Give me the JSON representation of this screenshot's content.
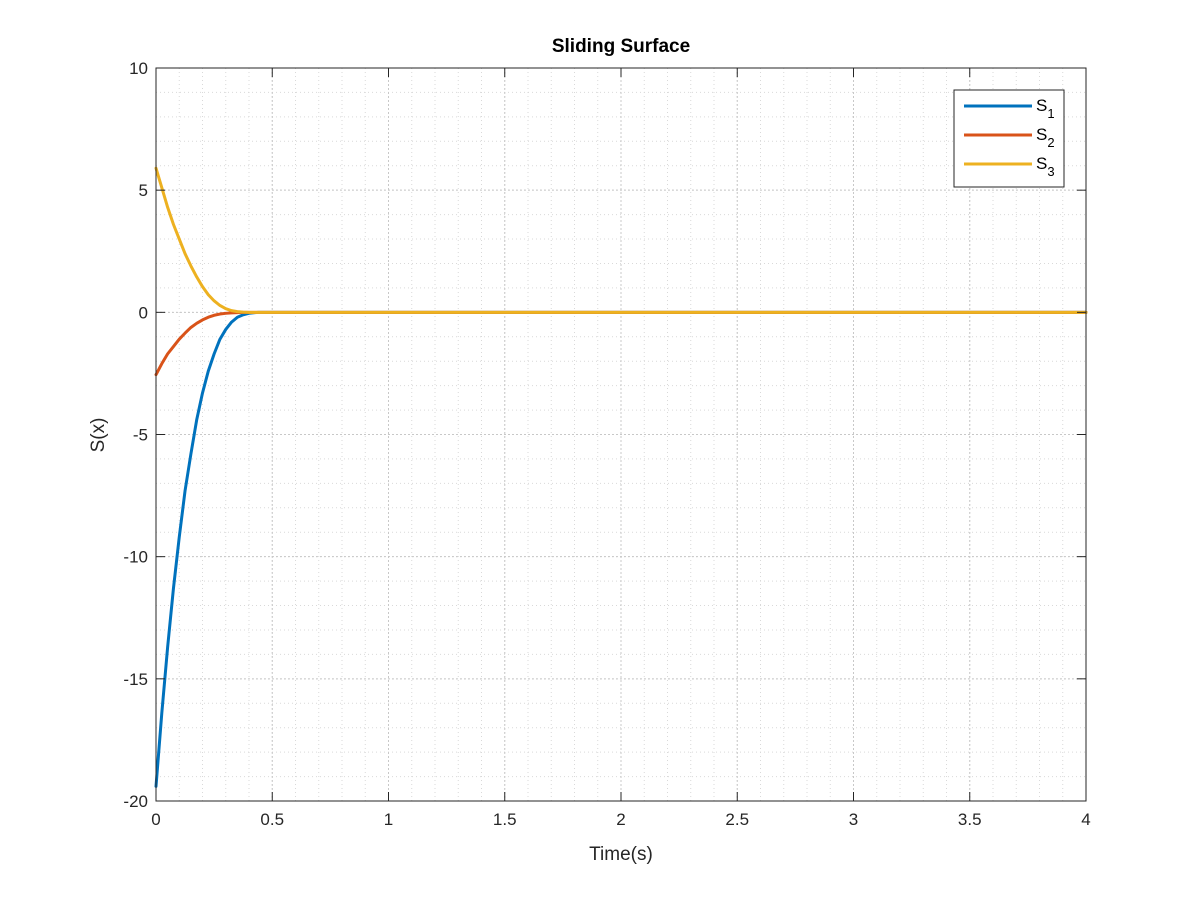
{
  "chart_data": {
    "type": "line",
    "title": "Sliding Surface",
    "xlabel": "Time(s)",
    "ylabel": "S(x)",
    "xlim": [
      0,
      4
    ],
    "ylim": [
      -20,
      10
    ],
    "x_ticks": [
      0,
      0.5,
      1,
      1.5,
      2,
      2.5,
      3,
      3.5,
      4
    ],
    "x_tick_labels": [
      "0",
      "0.5",
      "1",
      "1.5",
      "2",
      "2.5",
      "3",
      "3.5",
      "4"
    ],
    "y_ticks": [
      -20,
      -15,
      -10,
      -5,
      0,
      5,
      10
    ],
    "y_tick_labels": [
      "-20",
      "-15",
      "-10",
      "-5",
      "0",
      "5",
      "10"
    ],
    "grid": "major and minor",
    "legend_position": "top-right",
    "series": [
      {
        "name": "S",
        "subscript": "1",
        "color": "#0072BD",
        "x": [
          0,
          0.025,
          0.05,
          0.075,
          0.1,
          0.125,
          0.15,
          0.175,
          0.2,
          0.225,
          0.25,
          0.275,
          0.3,
          0.325,
          0.35,
          0.375,
          0.4,
          0.425,
          0.44,
          1,
          2,
          3,
          4
        ],
        "y": [
          -19.4,
          -16.4,
          -13.7,
          -11.3,
          -9.2,
          -7.3,
          -5.8,
          -4.4,
          -3.3,
          -2.4,
          -1.7,
          -1.1,
          -0.7,
          -0.4,
          -0.2,
          -0.1,
          -0.04,
          -0.01,
          0,
          0,
          0,
          0,
          0
        ]
      },
      {
        "name": "S",
        "subscript": "2",
        "color": "#D95319",
        "x": [
          0,
          0.025,
          0.05,
          0.075,
          0.1,
          0.125,
          0.15,
          0.175,
          0.2,
          0.225,
          0.25,
          0.275,
          0.3,
          0.325,
          0.35,
          0.375,
          0.4,
          1,
          2,
          3,
          4
        ],
        "y": [
          -2.55,
          -2.1,
          -1.7,
          -1.4,
          -1.1,
          -0.85,
          -0.62,
          -0.45,
          -0.31,
          -0.2,
          -0.12,
          -0.07,
          -0.04,
          -0.02,
          -0.01,
          0,
          0,
          0,
          0,
          0,
          0
        ]
      },
      {
        "name": "S",
        "subscript": "3",
        "color": "#EDB120",
        "x": [
          0,
          0.025,
          0.05,
          0.075,
          0.1,
          0.125,
          0.15,
          0.175,
          0.2,
          0.225,
          0.25,
          0.275,
          0.3,
          0.325,
          0.35,
          0.375,
          0.4,
          1,
          2,
          3,
          4
        ],
        "y": [
          5.9,
          5.1,
          4.3,
          3.6,
          3.0,
          2.4,
          1.9,
          1.45,
          1.05,
          0.72,
          0.47,
          0.28,
          0.15,
          0.07,
          0.03,
          0.01,
          0,
          0,
          0,
          0,
          0
        ]
      }
    ]
  }
}
